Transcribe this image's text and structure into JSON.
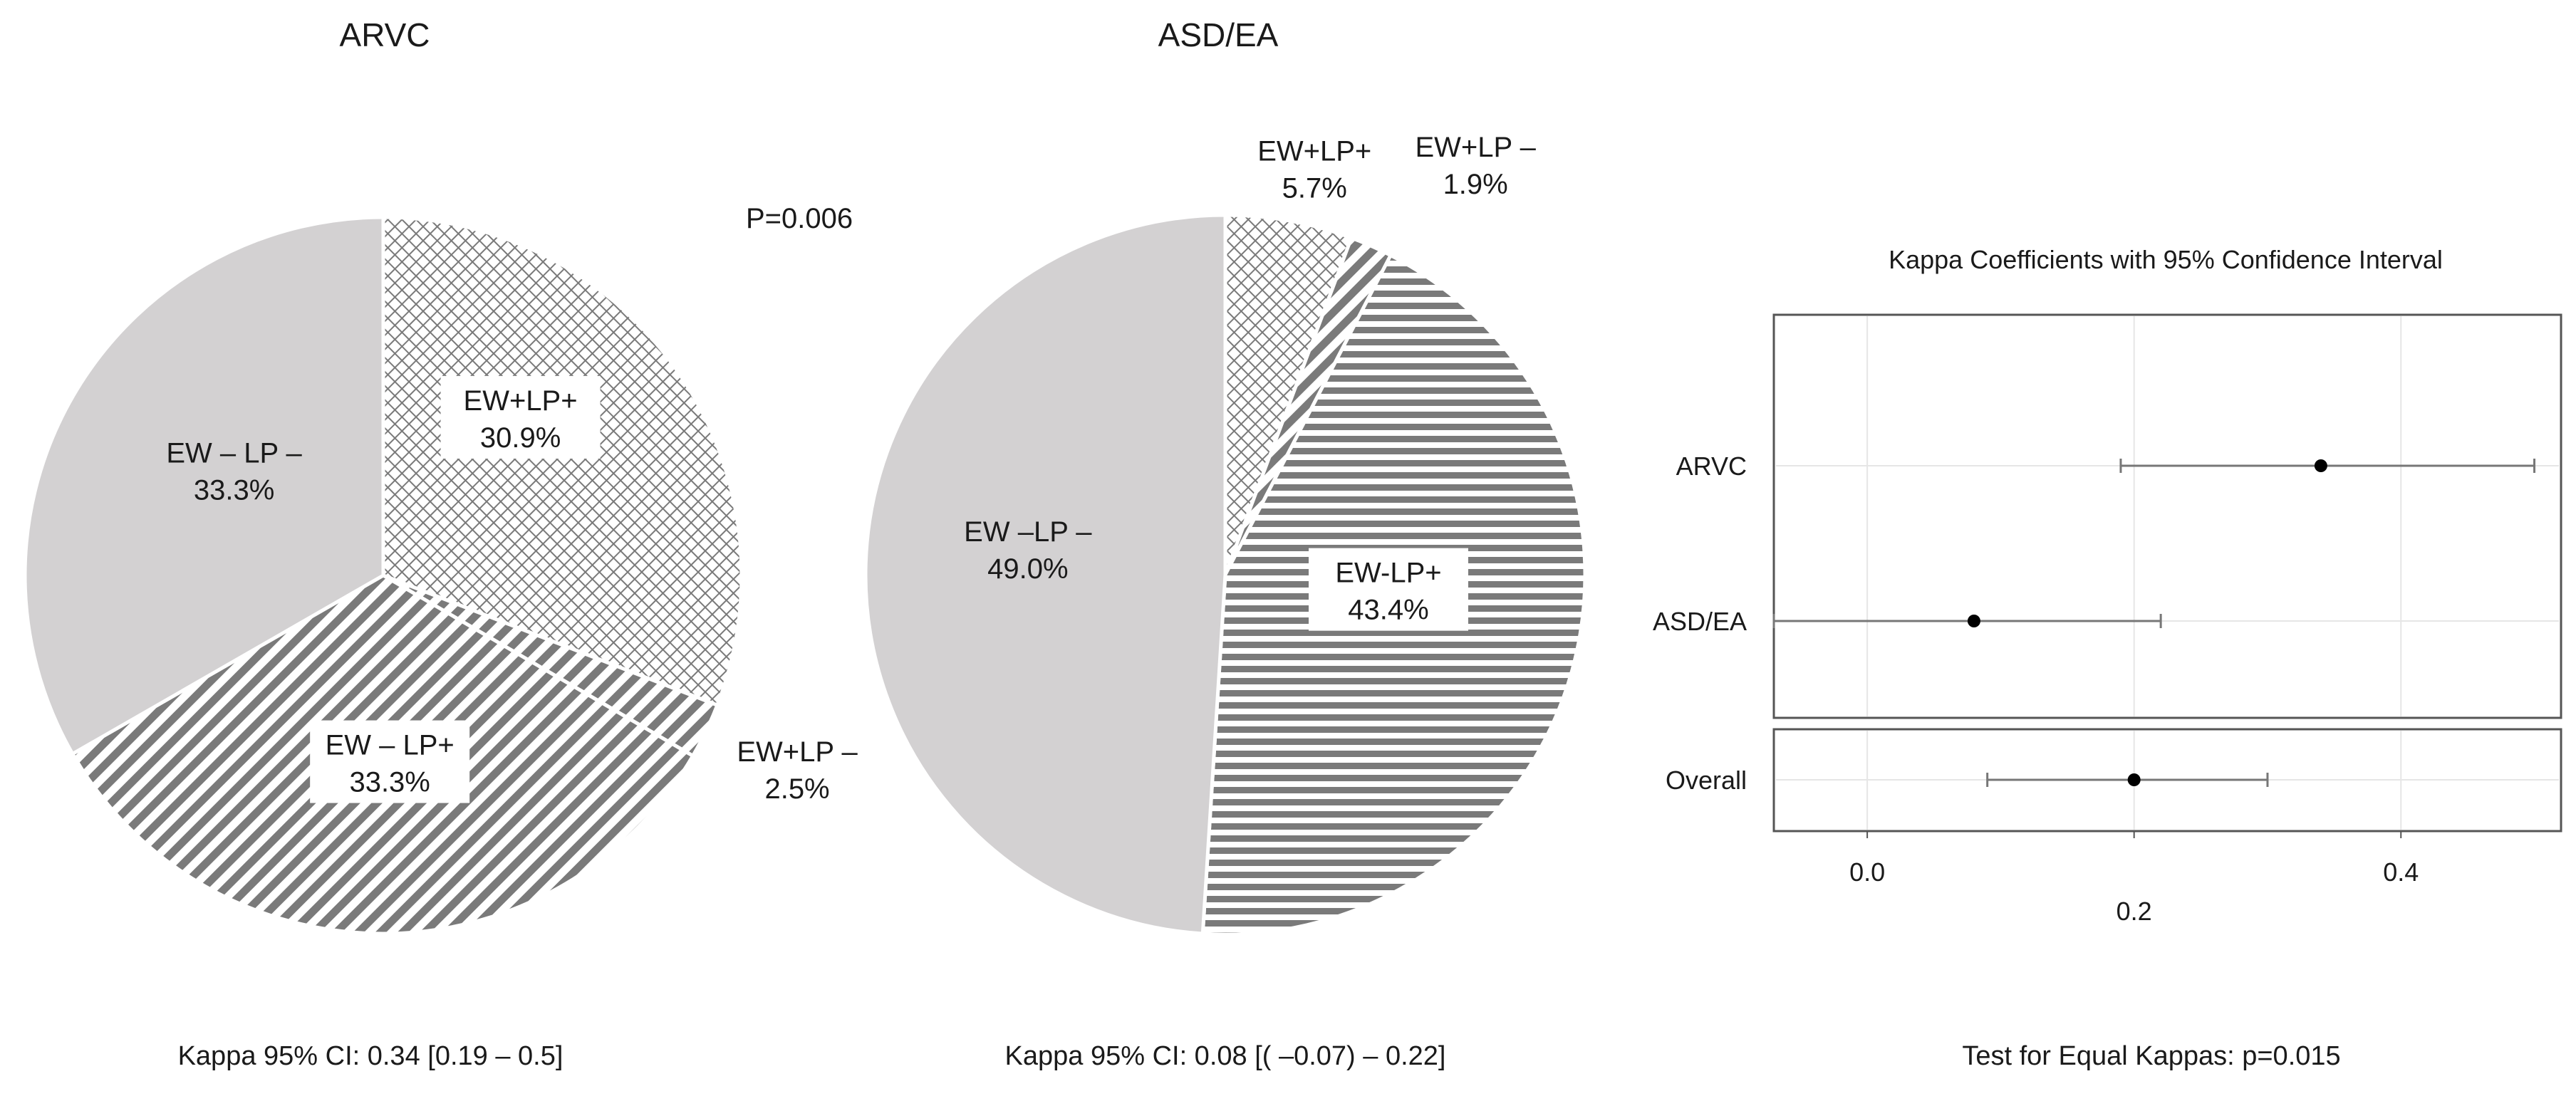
{
  "chart_data": [
    {
      "type": "pie",
      "title": "ARVC",
      "slices": [
        {
          "label": "EW+LP+",
          "value": 30.9,
          "value_label": "30.9%",
          "pattern": "crosshatch",
          "label_box": true
        },
        {
          "label": "EW+LP –",
          "value": 2.5,
          "value_label": "2.5%",
          "pattern": "diagonal",
          "label_box": false
        },
        {
          "label": "EW – LP+",
          "value": 33.3,
          "value_label": "33.3%",
          "pattern": "diagonal",
          "label_box": true
        },
        {
          "label": "EW – LP –",
          "value": 33.3,
          "value_label": "33.3%",
          "pattern": "solid",
          "label_box": false
        }
      ],
      "annotation": "P=0.006",
      "caption": "Kappa 95% CI: 0.34 [0.19 – 0.5]"
    },
    {
      "type": "pie",
      "title": "ASD/EA",
      "slices": [
        {
          "label": "EW+LP+",
          "value": 5.7,
          "value_label": "5.7%",
          "pattern": "crosshatch",
          "label_box": false
        },
        {
          "label": "EW+LP –",
          "value": 1.9,
          "value_label": "1.9%",
          "pattern": "diagonal",
          "label_box": false
        },
        {
          "label": "EW-LP+",
          "value": 43.4,
          "value_label": "43.4%",
          "pattern": "horizontal",
          "label_box": true
        },
        {
          "label": "EW –LP –",
          "value": 49.0,
          "value_label": "49.0%",
          "pattern": "solid",
          "label_box": false
        }
      ],
      "caption": "Kappa 95% CI: 0.08 [( –0.07) – 0.22]"
    },
    {
      "type": "forest",
      "title": "Kappa Coefficients with 95% Confidence Interval",
      "rows": [
        {
          "label": "ARVC",
          "estimate": 0.34,
          "lower": 0.19,
          "upper": 0.5
        },
        {
          "label": "ASD/EA",
          "estimate": 0.08,
          "lower": -0.07,
          "upper": 0.22
        }
      ],
      "overall": {
        "label": "Overall",
        "estimate": 0.2,
        "lower": 0.09,
        "upper": 0.3
      },
      "xlim": [
        -0.07,
        0.52
      ],
      "ticks": [
        {
          "value": 0.0,
          "label": "0.0",
          "row": 1
        },
        {
          "value": 0.2,
          "label": "0.2",
          "row": 2
        },
        {
          "value": 0.4,
          "label": "0.4",
          "row": 1
        }
      ],
      "grid": true,
      "caption": "Test for Equal Kappas: p=0.015"
    }
  ],
  "colors": {
    "solid_fill": "#d3d1d2",
    "pattern_ink": "#7a7a7a",
    "pattern_bg": "#ffffff",
    "forest_frame": "#555555",
    "forest_grid": "#e6e6e6",
    "forest_whisker": "#777777",
    "forest_point": "#000000"
  }
}
